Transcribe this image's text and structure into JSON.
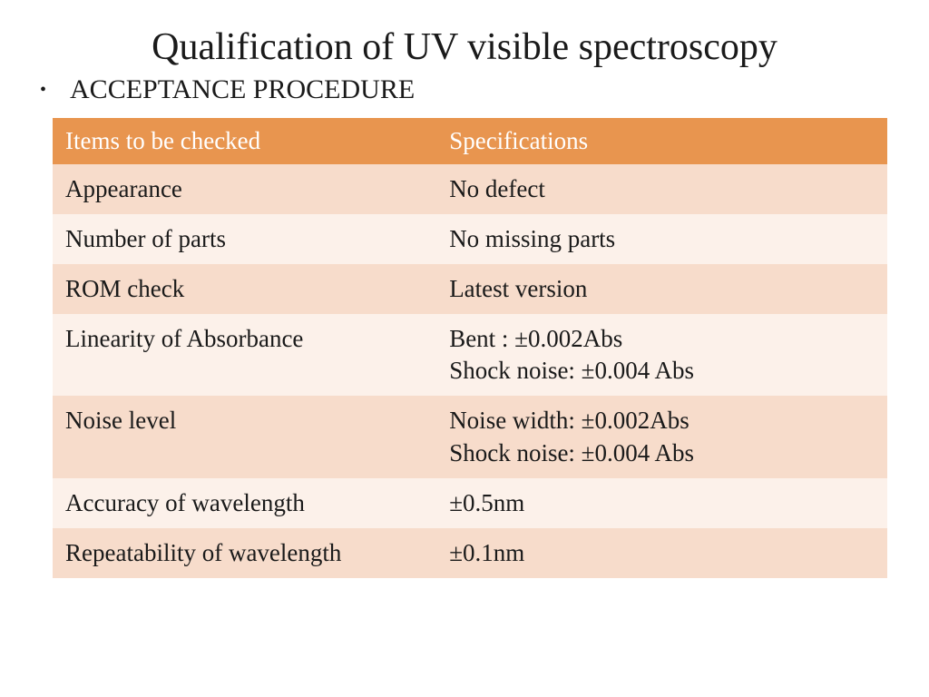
{
  "title": "Qualification of UV visible spectroscopy",
  "subheading": "ACCEPTANCE PROCEDURE",
  "table": {
    "header_bg": "#e8954f",
    "row_odd_bg": "#f7dccb",
    "row_even_bg": "#fcf1ea",
    "text_color": "#1a1a1a",
    "header_text_color": "#ffffff",
    "columns": [
      "Items to be checked",
      "Specifications"
    ],
    "rows": [
      {
        "item": "Appearance",
        "spec": "No defect"
      },
      {
        "item": "Number of parts",
        "spec": "No missing parts"
      },
      {
        "item": "ROM check",
        "spec": "Latest version"
      },
      {
        "item": "Linearity of Absorbance",
        "spec": "Bent : ±0.002Abs\nShock noise: ±0.004 Abs"
      },
      {
        "item": "Noise level",
        "spec": "Noise width: ±0.002Abs\nShock noise: ±0.004 Abs"
      },
      {
        "item": "Accuracy of wavelength",
        "spec": "±0.5nm"
      },
      {
        "item": "Repeatability of wavelength",
        "spec": "±0.1nm"
      }
    ]
  }
}
